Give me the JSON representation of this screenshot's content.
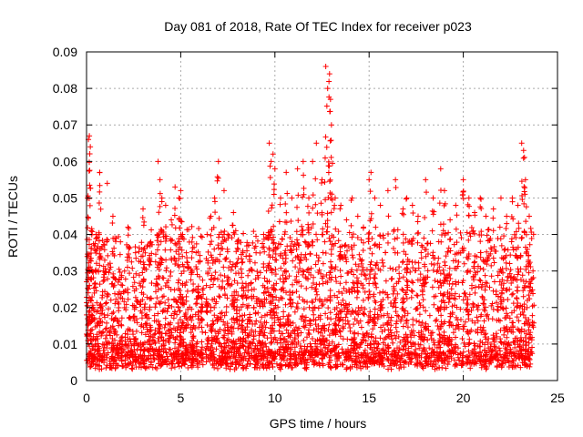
{
  "chart_data": {
    "type": "scatter",
    "title": "Day 081 of 2018, Rate Of TEC Index for receiver p023",
    "xlabel": "GPS time / hours",
    "ylabel": "ROTI / TECUs",
    "xlim": [
      0,
      25
    ],
    "ylim": [
      0,
      0.09
    ],
    "xticks": [
      "0",
      "5",
      "10",
      "15",
      "20",
      "25"
    ],
    "yticks": [
      "0",
      "0.01",
      "0.02",
      "0.03",
      "0.04",
      "0.05",
      "0.06",
      "0.07",
      "0.08",
      "0.09"
    ],
    "grid": true,
    "marker": "+",
    "color": "#ff0000",
    "data_gap_hours": [
      6.2,
      6.3
    ],
    "series": [
      {
        "x": [
          0.05,
          0.1,
          0.15,
          0.2,
          0.25,
          0.3,
          0.35,
          0.5,
          0.7,
          0.9,
          1.1,
          1.4,
          1.8,
          2.2,
          2.6,
          3.0,
          3.4,
          3.8,
          3.9,
          4.0,
          4.2,
          4.5,
          4.7,
          4.9,
          5.0,
          5.1,
          5.3,
          5.6,
          5.9,
          6.1,
          6.4,
          6.6,
          6.8,
          7.0,
          7.3,
          7.5,
          7.8,
          8.0,
          8.3,
          8.6,
          9.0,
          9.4,
          9.7,
          9.8,
          9.9,
          10.0,
          10.3,
          10.6,
          10.9,
          11.2,
          11.5,
          11.8,
          12.0,
          12.2,
          12.5,
          12.7,
          12.8,
          12.9,
          12.95,
          13.0,
          13.2,
          13.5,
          13.8,
          14.1,
          14.4,
          14.7,
          15.0,
          15.1,
          15.3,
          15.6,
          16.0,
          16.4,
          16.8,
          17.0,
          17.3,
          17.6,
          18.0,
          18.4,
          18.8,
          19.0,
          19.3,
          19.6,
          20.0,
          20.3,
          20.6,
          20.9,
          21.2,
          21.6,
          22.0,
          22.3,
          22.6,
          22.9,
          23.1,
          23.2,
          23.3,
          23.5,
          23.7
        ],
        "y": [
          0.05,
          0.066,
          0.067,
          0.064,
          0.041,
          0.03,
          0.02,
          0.04,
          0.057,
          0.03,
          0.054,
          0.045,
          0.038,
          0.042,
          0.035,
          0.047,
          0.038,
          0.06,
          0.055,
          0.05,
          0.048,
          0.044,
          0.053,
          0.05,
          0.052,
          0.04,
          0.035,
          0.03,
          0.025,
          0.02,
          0.04,
          0.045,
          0.05,
          0.06,
          0.052,
          0.04,
          0.046,
          0.038,
          0.035,
          0.037,
          0.035,
          0.04,
          0.065,
          0.06,
          0.062,
          0.058,
          0.05,
          0.057,
          0.05,
          0.058,
          0.06,
          0.05,
          0.06,
          0.065,
          0.055,
          0.086,
          0.08,
          0.084,
          0.077,
          0.07,
          0.05,
          0.048,
          0.044,
          0.05,
          0.045,
          0.042,
          0.055,
          0.057,
          0.05,
          0.048,
          0.052,
          0.055,
          0.047,
          0.05,
          0.048,
          0.045,
          0.055,
          0.05,
          0.058,
          0.052,
          0.044,
          0.048,
          0.055,
          0.05,
          0.046,
          0.05,
          0.045,
          0.047,
          0.05,
          0.045,
          0.05,
          0.048,
          0.065,
          0.063,
          0.055,
          0.045,
          0.03
        ]
      }
    ]
  }
}
